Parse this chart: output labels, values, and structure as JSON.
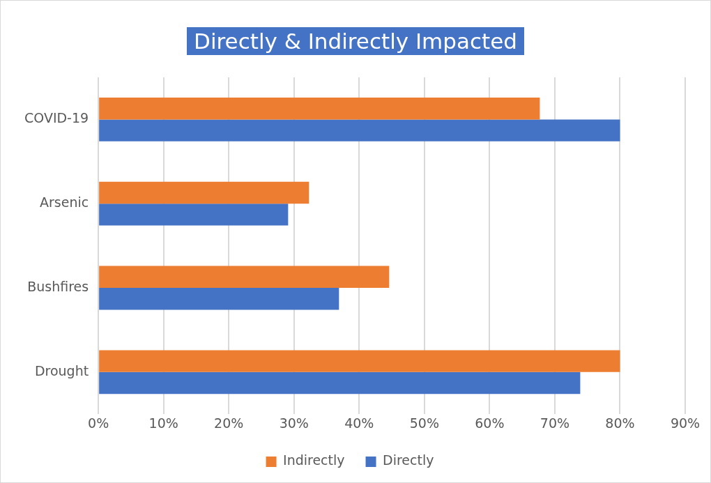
{
  "chart_data": {
    "type": "bar",
    "orientation": "horizontal",
    "title": "Directly & Indirectly Impacted",
    "categories": [
      "COVID-19",
      "Arsenic",
      "Bushfires",
      "Drought"
    ],
    "series": [
      {
        "name": "Indirectly",
        "color": "#ed7d31",
        "values": [
          67.7,
          32.3,
          44.6,
          80
        ]
      },
      {
        "name": "Directly",
        "color": "#4472c4",
        "values": [
          80,
          29.1,
          36.9,
          73.9
        ]
      }
    ],
    "xlim": [
      0,
      90
    ],
    "xticks": [
      {
        "value": 0,
        "label": "0%"
      },
      {
        "value": 10,
        "label": "10%"
      },
      {
        "value": 20,
        "label": "20%"
      },
      {
        "value": 30,
        "label": "30%"
      },
      {
        "value": 40,
        "label": "40%"
      },
      {
        "value": 50,
        "label": "50%"
      },
      {
        "value": 60,
        "label": "60%"
      },
      {
        "value": 70,
        "label": "70%"
      },
      {
        "value": 80,
        "label": "80%"
      },
      {
        "value": 90,
        "label": "90%"
      }
    ],
    "grid": "x",
    "legend": "bottom"
  }
}
